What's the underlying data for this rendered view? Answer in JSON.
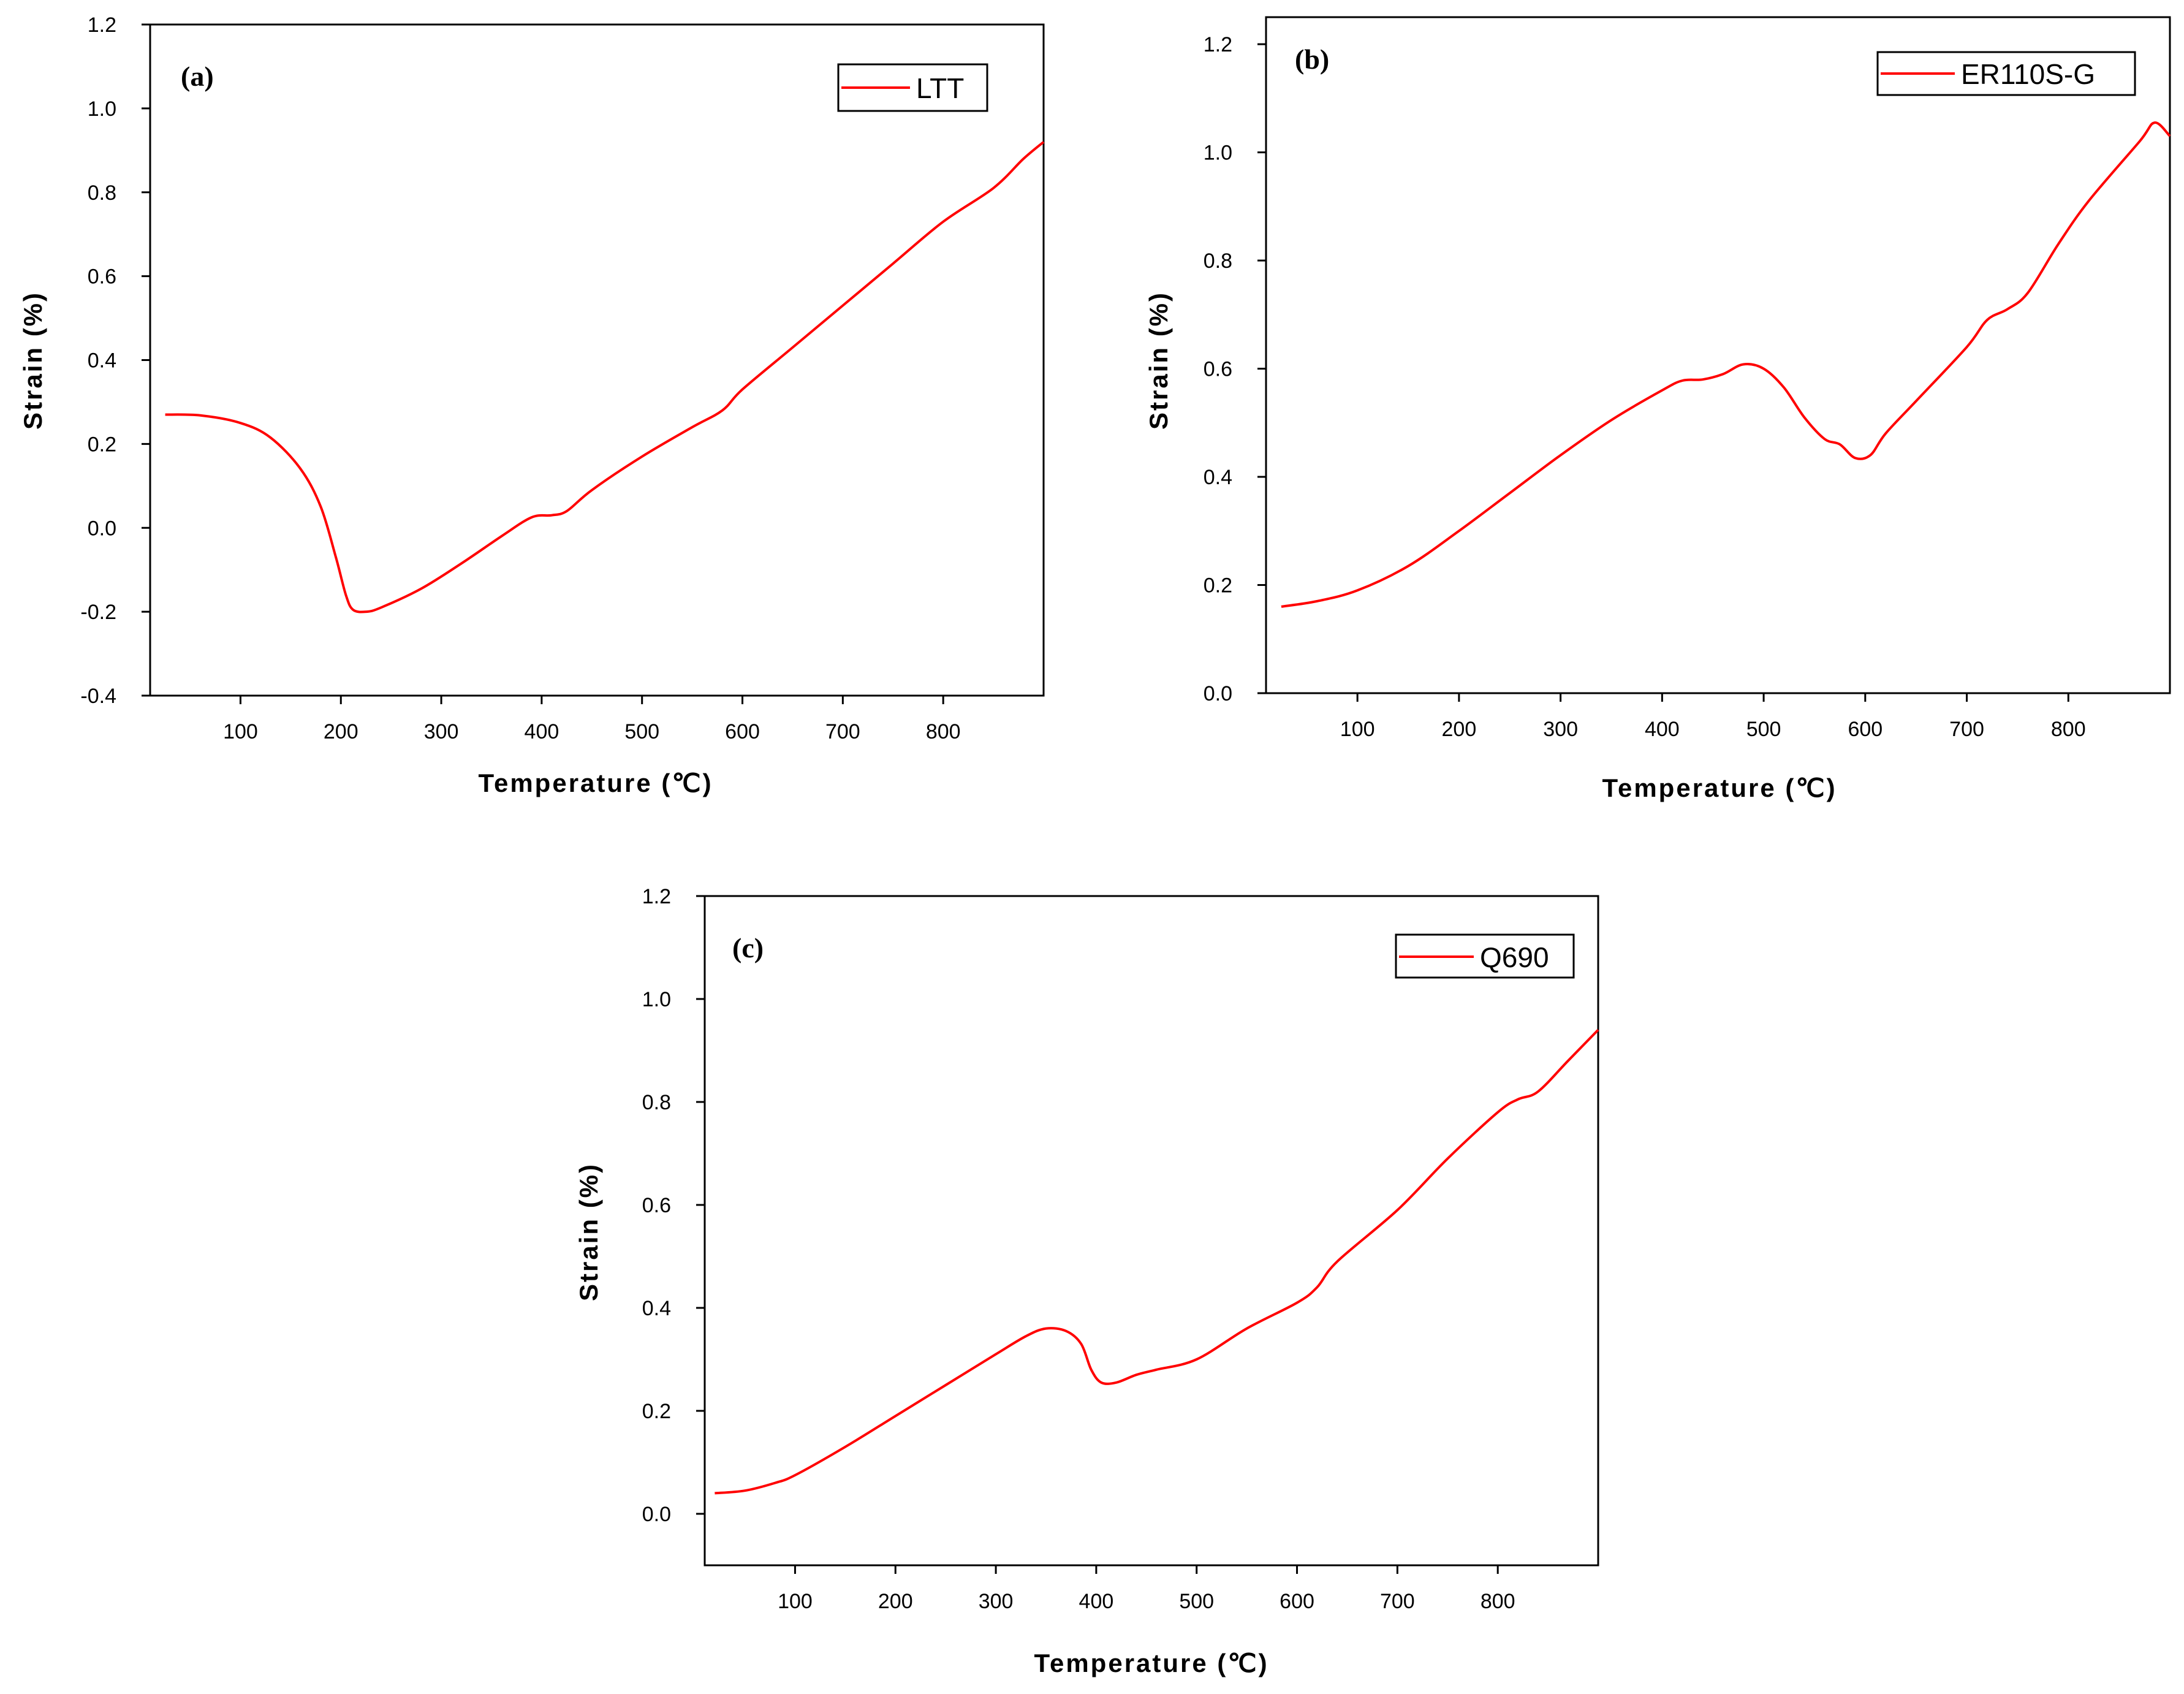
{
  "figure": {
    "background": "#ffffff",
    "line_color": "#ff0000",
    "axis_color": "#000000"
  },
  "chart_data": [
    {
      "type": "line",
      "panel_label": "(a)",
      "legend": "LTT",
      "legend_position": "top-right",
      "xlabel": "Temperature (℃)",
      "ylabel": "Strain (%)",
      "xlim": [
        10,
        900
      ],
      "ylim": [
        -0.4,
        1.2
      ],
      "xticks": [
        100,
        200,
        300,
        400,
        500,
        600,
        700,
        800
      ],
      "yticks": [
        -0.4,
        -0.2,
        0.0,
        0.2,
        0.4,
        0.6,
        0.8,
        1.0,
        1.2
      ],
      "ytick_labels": [
        "-0.4",
        "-0.2",
        "0.0",
        "0.2",
        "0.4",
        "0.6",
        "0.8",
        "1.0",
        "1.2"
      ],
      "series": [
        {
          "name": "LTT",
          "x": [
            25,
            60,
            100,
            130,
            160,
            180,
            195,
            205,
            212,
            225,
            240,
            280,
            320,
            360,
            390,
            410,
            425,
            450,
            500,
            550,
            580,
            600,
            650,
            700,
            750,
            800,
            850,
            880,
            900
          ],
          "y": [
            0.27,
            0.268,
            0.25,
            0.215,
            0.14,
            0.05,
            -0.07,
            -0.16,
            -0.195,
            -0.2,
            -0.19,
            -0.145,
            -0.085,
            -0.02,
            0.025,
            0.03,
            0.04,
            0.09,
            0.17,
            0.24,
            0.28,
            0.33,
            0.43,
            0.53,
            0.63,
            0.73,
            0.81,
            0.88,
            0.92
          ]
        }
      ]
    },
    {
      "type": "line",
      "panel_label": "(b)",
      "legend": "ER110S-G",
      "legend_position": "top-right",
      "xlabel": "Temperature (℃)",
      "ylabel": "Strain (%)",
      "xlim": [
        10,
        900
      ],
      "ylim": [
        0.0,
        1.25
      ],
      "xticks": [
        100,
        200,
        300,
        400,
        500,
        600,
        700,
        800
      ],
      "yticks": [
        0.0,
        0.2,
        0.4,
        0.6,
        0.8,
        1.0,
        1.2
      ],
      "ytick_labels": [
        "0.0",
        "0.2",
        "0.4",
        "0.6",
        "0.8",
        "1.0",
        "1.2"
      ],
      "series": [
        {
          "name": "ER110S-G",
          "x": [
            25,
            60,
            100,
            150,
            200,
            250,
            300,
            350,
            400,
            420,
            440,
            460,
            480,
            500,
            520,
            540,
            560,
            575,
            590,
            605,
            620,
            650,
            700,
            720,
            740,
            760,
            790,
            820,
            870,
            885,
            900
          ],
          "y": [
            0.16,
            0.17,
            0.19,
            0.235,
            0.3,
            0.37,
            0.44,
            0.505,
            0.56,
            0.578,
            0.58,
            0.59,
            0.608,
            0.6,
            0.565,
            0.51,
            0.47,
            0.46,
            0.435,
            0.44,
            0.48,
            0.54,
            0.64,
            0.69,
            0.71,
            0.74,
            0.83,
            0.91,
            1.02,
            1.055,
            1.03
          ]
        }
      ]
    },
    {
      "type": "line",
      "panel_label": "(c)",
      "legend": "Q690",
      "legend_position": "top-right",
      "xlabel": "Temperature (℃)",
      "ylabel": "Strain (%)",
      "xlim": [
        10,
        900
      ],
      "ylim": [
        -0.1,
        1.2
      ],
      "xticks": [
        100,
        200,
        300,
        400,
        500,
        600,
        700,
        800
      ],
      "yticks": [
        0.0,
        0.2,
        0.4,
        0.6,
        0.8,
        1.0,
        1.2
      ],
      "ytick_labels": [
        "0.0",
        "0.2",
        "0.4",
        "0.6",
        "0.8",
        "1.0",
        "1.2"
      ],
      "series": [
        {
          "name": "Q690",
          "x": [
            20,
            50,
            80,
            100,
            150,
            200,
            250,
            300,
            330,
            350,
            370,
            385,
            395,
            405,
            420,
            440,
            460,
            500,
            550,
            600,
            620,
            640,
            700,
            750,
            800,
            820,
            840,
            870,
            900
          ],
          "y": [
            0.04,
            0.045,
            0.06,
            0.075,
            0.13,
            0.19,
            0.25,
            0.31,
            0.345,
            0.36,
            0.355,
            0.33,
            0.28,
            0.255,
            0.255,
            0.27,
            0.28,
            0.3,
            0.36,
            0.41,
            0.44,
            0.49,
            0.59,
            0.69,
            0.78,
            0.805,
            0.82,
            0.88,
            0.94
          ]
        }
      ]
    }
  ]
}
